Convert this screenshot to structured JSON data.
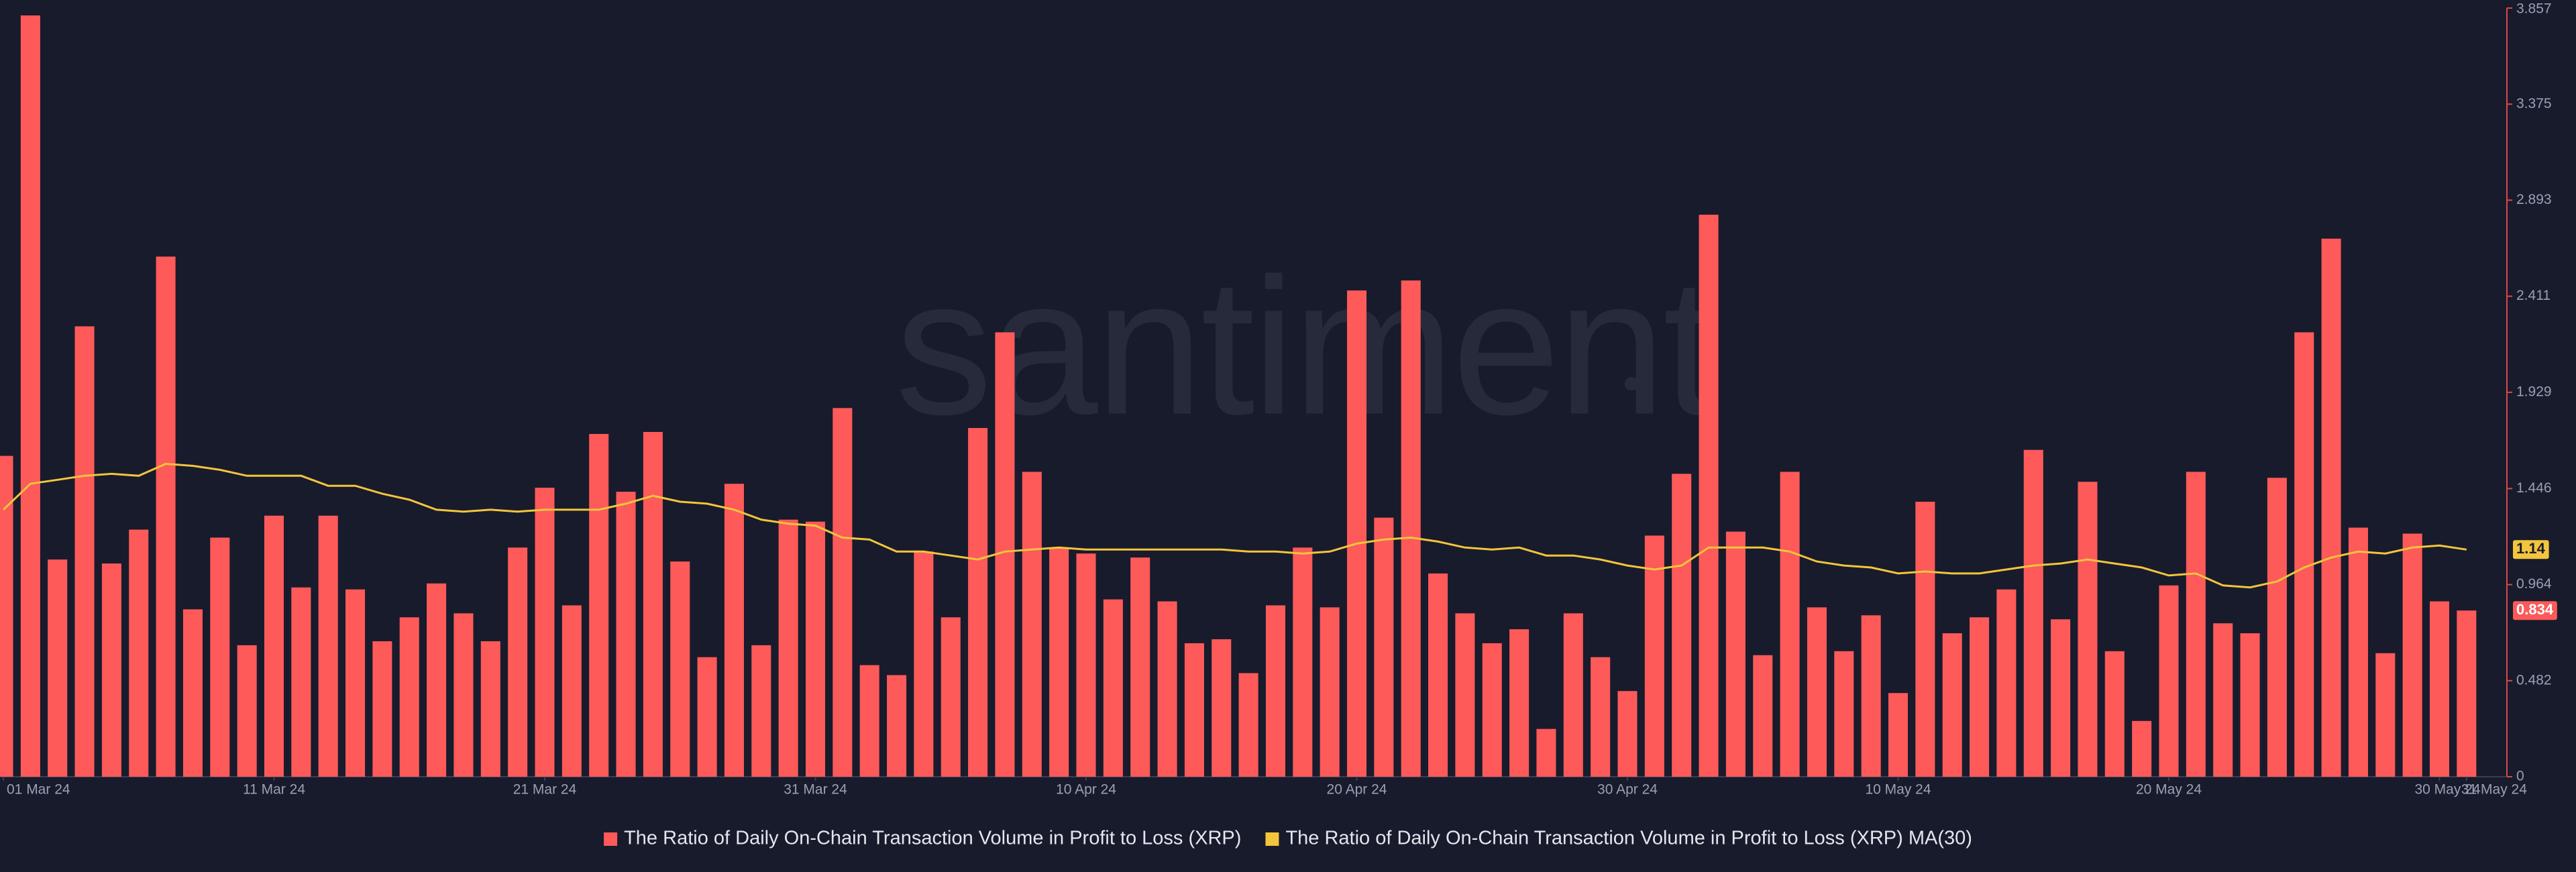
{
  "chart_data": {
    "type": "bar",
    "watermark": "santiment",
    "categories": [
      "01 Mar 24",
      null,
      null,
      null,
      null,
      null,
      null,
      null,
      null,
      null,
      "11 Mar 24",
      null,
      null,
      null,
      null,
      null,
      null,
      null,
      null,
      null,
      "21 Mar 24",
      null,
      null,
      null,
      null,
      null,
      null,
      null,
      null,
      null,
      "31 Mar 24",
      null,
      null,
      null,
      null,
      null,
      null,
      null,
      null,
      null,
      "10 Apr 24",
      null,
      null,
      null,
      null,
      null,
      null,
      null,
      null,
      null,
      "20 Apr 24",
      null,
      null,
      null,
      null,
      null,
      null,
      null,
      null,
      null,
      "30 Apr 24",
      null,
      null,
      null,
      null,
      null,
      null,
      null,
      null,
      null,
      "10 May 24",
      null,
      null,
      null,
      null,
      null,
      null,
      null,
      null,
      null,
      "20 May 24",
      null,
      null,
      null,
      null,
      null,
      null,
      null,
      null,
      null,
      "30 May 24",
      "31 May 24"
    ],
    "series": [
      {
        "name": "The Ratio of Daily On-Chain Transaction Volume in Profit to Loss (XRP)",
        "color": "#ff5a5a",
        "kind": "bar",
        "values": [
          1.61,
          3.82,
          1.09,
          2.26,
          1.07,
          1.24,
          2.61,
          0.84,
          1.2,
          0.66,
          1.31,
          0.95,
          1.31,
          0.94,
          0.68,
          0.8,
          0.97,
          0.82,
          0.68,
          1.15,
          1.45,
          0.86,
          1.72,
          1.43,
          1.73,
          1.08,
          0.6,
          1.47,
          0.66,
          1.29,
          1.28,
          1.85,
          0.56,
          0.51,
          1.13,
          0.8,
          1.75,
          2.23,
          1.53,
          1.15,
          1.12,
          0.89,
          1.1,
          0.88,
          0.67,
          0.69,
          0.52,
          0.86,
          1.15,
          0.85,
          2.44,
          1.3,
          2.49,
          1.02,
          0.82,
          0.67,
          0.74,
          0.24,
          0.82,
          0.6,
          0.43,
          1.21,
          1.52,
          2.82,
          1.23,
          0.61,
          1.53,
          0.85,
          0.63,
          0.81,
          0.42,
          1.38,
          0.72,
          0.8,
          0.94,
          1.64,
          0.79,
          1.48,
          0.63,
          0.28,
          0.96,
          1.53,
          0.77,
          0.72,
          1.5,
          2.23,
          2.7,
          1.25,
          0.62,
          1.22,
          0.88,
          0.834
        ]
      },
      {
        "name": "The Ratio of Daily On-Chain Transaction Volume in Profit to Loss (XRP) MA(30)",
        "color": "#f2c53d",
        "kind": "line",
        "values": [
          1.34,
          1.47,
          1.49,
          1.51,
          1.52,
          1.51,
          1.57,
          1.56,
          1.54,
          1.51,
          1.51,
          1.51,
          1.46,
          1.46,
          1.42,
          1.39,
          1.34,
          1.33,
          1.34,
          1.33,
          1.34,
          1.34,
          1.34,
          1.37,
          1.41,
          1.38,
          1.37,
          1.34,
          1.29,
          1.27,
          1.26,
          1.2,
          1.19,
          1.13,
          1.13,
          1.11,
          1.09,
          1.13,
          1.14,
          1.15,
          1.14,
          1.14,
          1.14,
          1.14,
          1.14,
          1.14,
          1.13,
          1.13,
          1.12,
          1.13,
          1.17,
          1.19,
          1.2,
          1.18,
          1.15,
          1.14,
          1.15,
          1.11,
          1.11,
          1.09,
          1.06,
          1.04,
          1.06,
          1.15,
          1.15,
          1.15,
          1.13,
          1.08,
          1.06,
          1.05,
          1.02,
          1.03,
          1.02,
          1.02,
          1.04,
          1.06,
          1.07,
          1.09,
          1.07,
          1.05,
          1.01,
          1.02,
          0.96,
          0.95,
          0.98,
          1.05,
          1.1,
          1.13,
          1.12,
          1.15,
          1.16,
          1.14
        ]
      }
    ],
    "ylim": [
      0,
      3.857
    ],
    "yticks": [
      0,
      0.482,
      0.964,
      1.446,
      1.929,
      2.411,
      2.893,
      3.375,
      3.857
    ],
    "y_axis_side": "right"
  }
}
